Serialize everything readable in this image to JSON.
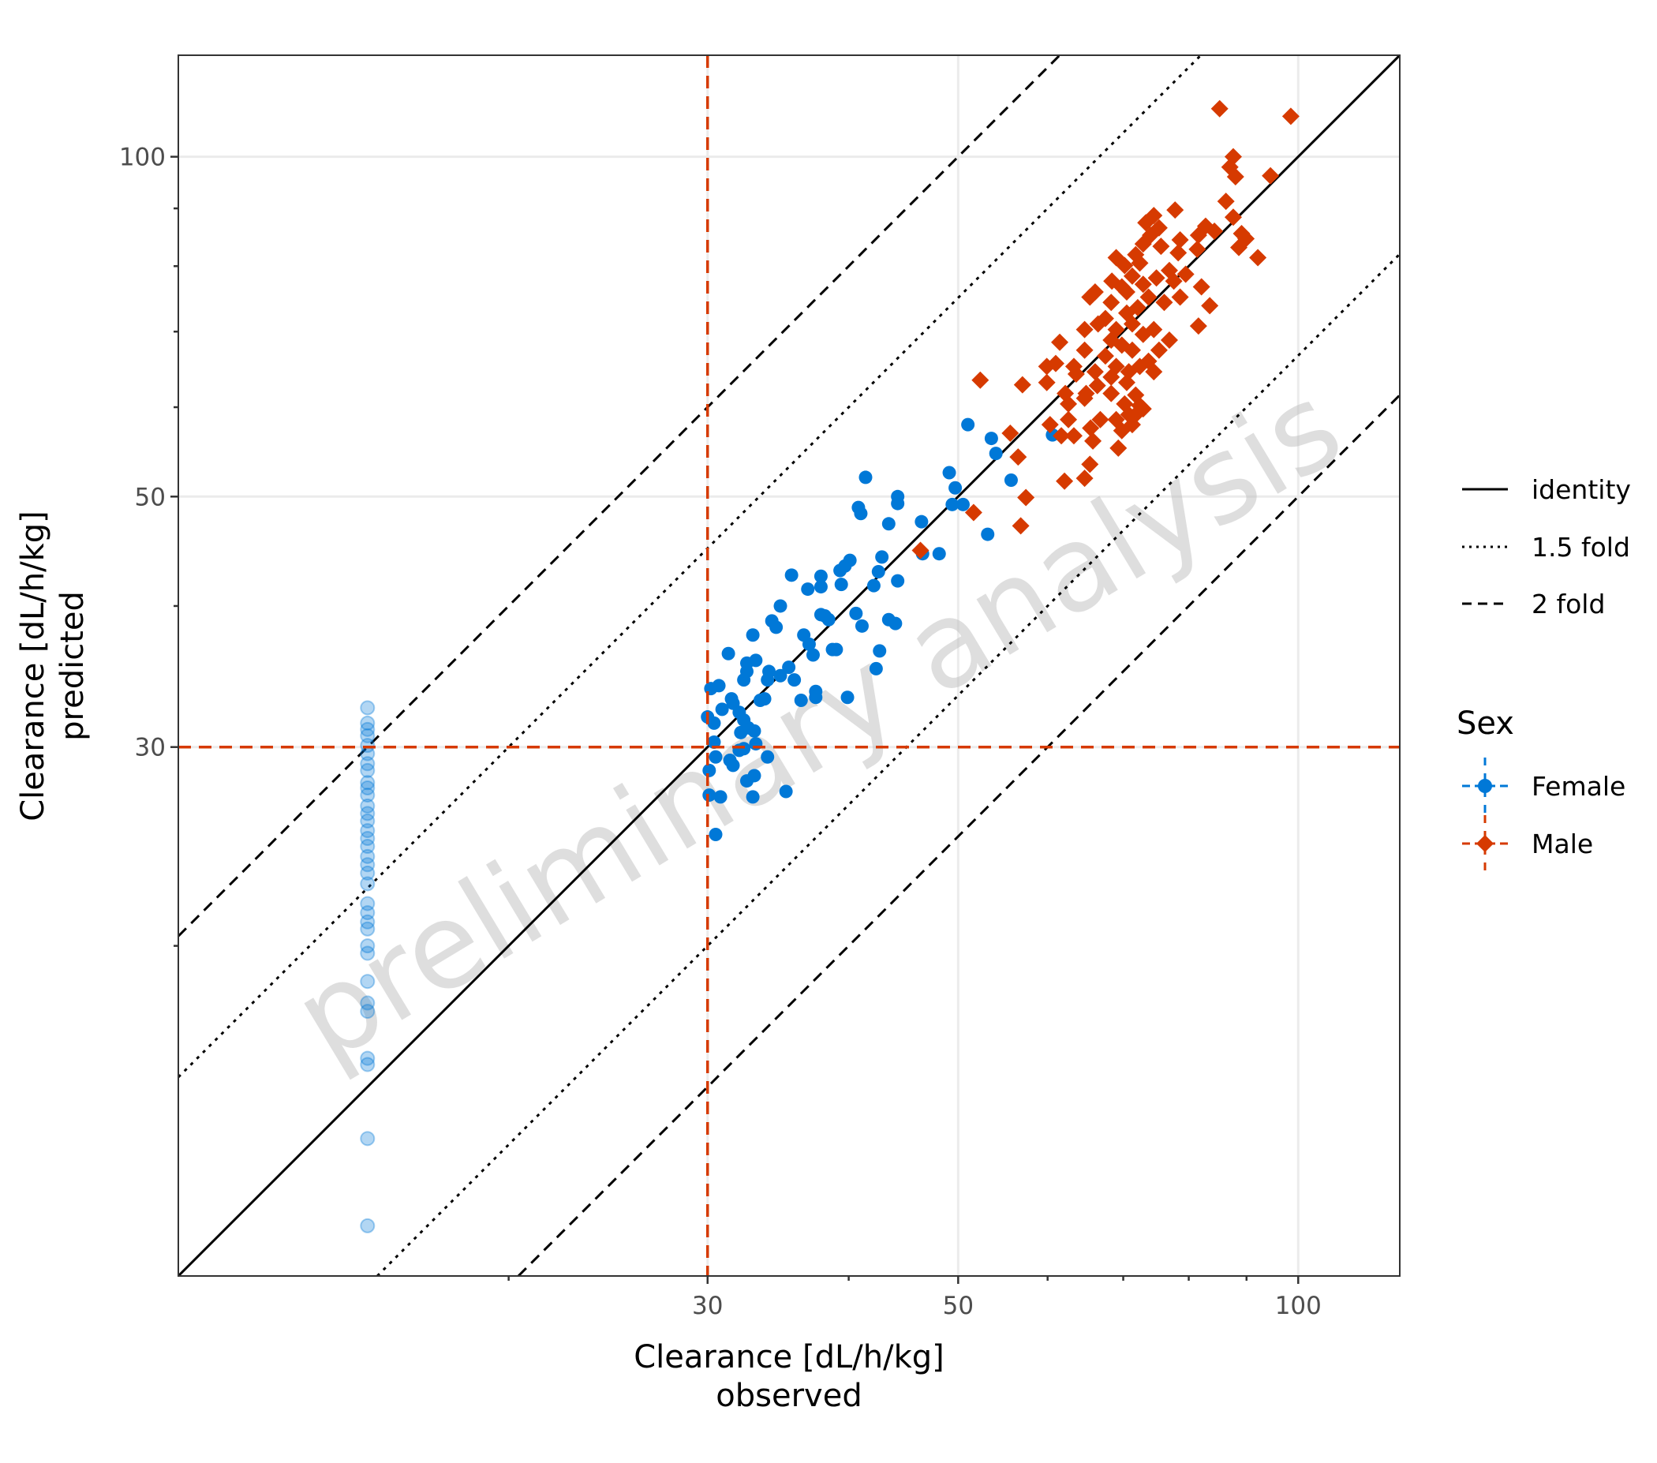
{
  "chart_data": {
    "type": "scatter",
    "x_scale": "log",
    "y_scale": "log",
    "xlim": [
      10.2,
      123
    ],
    "ylim": [
      10.2,
      123
    ],
    "x_ticks": [
      30,
      50,
      100
    ],
    "y_ticks": [
      30,
      50,
      100
    ],
    "x_tick_labels": [
      "30",
      "50",
      "100"
    ],
    "y_tick_labels": [
      "30",
      "50",
      "100"
    ],
    "minor_ticks": [
      20,
      40,
      60,
      70,
      80,
      90
    ],
    "grid": true,
    "xlabel_lines": [
      "Clearance [dL/h/kg]",
      "observed"
    ],
    "ylabel_lines": [
      "Clearance [dL/h/kg]",
      "predicted"
    ],
    "watermark": "preliminary analysis",
    "lloq": 30,
    "lloq_color": "#D63A00",
    "reference_lines": [
      {
        "name": "identity",
        "fold": 1,
        "style": "solid"
      },
      {
        "name": "1.5 fold",
        "fold": 1.5,
        "style": "dotted"
      },
      {
        "name": "2 fold",
        "fold": 2,
        "style": "dashed"
      }
    ],
    "legend": {
      "placement": "right",
      "lines": [
        "identity",
        "1.5 fold",
        "2 fold"
      ],
      "group_title": "Sex",
      "groups": [
        "Female",
        "Male"
      ]
    },
    "series": [
      {
        "name": "Female",
        "color": "#0078D7",
        "marker": "circle",
        "points": [
          [
            30.2,
            33.8
          ],
          [
            30.7,
            34.0
          ],
          [
            31.3,
            36.3
          ],
          [
            30.0,
            31.9
          ],
          [
            30.4,
            31.5
          ],
          [
            30.9,
            32.4
          ],
          [
            31.5,
            33.1
          ],
          [
            31.6,
            32.8
          ],
          [
            32.0,
            32.2
          ],
          [
            32.3,
            34.4
          ],
          [
            32.5,
            35.0
          ],
          [
            32.9,
            37.7
          ],
          [
            33.1,
            35.8
          ],
          [
            32.3,
            31.7
          ],
          [
            32.6,
            31.2
          ],
          [
            33.0,
            31.0
          ],
          [
            32.1,
            30.9
          ],
          [
            30.4,
            30.3
          ],
          [
            30.1,
            28.6
          ],
          [
            30.5,
            29.4
          ],
          [
            31.4,
            29.2
          ],
          [
            32.3,
            29.9
          ],
          [
            33.1,
            30.2
          ],
          [
            33.4,
            33.0
          ],
          [
            33.7,
            33.1
          ],
          [
            33.9,
            34.4
          ],
          [
            34.0,
            35.0
          ],
          [
            34.2,
            38.8
          ],
          [
            34.5,
            38.3
          ],
          [
            34.8,
            40.0
          ],
          [
            34.8,
            34.7
          ],
          [
            35.4,
            35.3
          ],
          [
            35.6,
            42.6
          ],
          [
            35.8,
            34.4
          ],
          [
            36.3,
            33.0
          ],
          [
            36.5,
            37.7
          ],
          [
            36.8,
            41.4
          ],
          [
            36.9,
            37.0
          ],
          [
            37.2,
            36.2
          ],
          [
            37.4,
            33.6
          ],
          [
            37.4,
            33.2
          ],
          [
            37.8,
            42.5
          ],
          [
            37.8,
            41.6
          ],
          [
            37.8,
            39.3
          ],
          [
            38.1,
            39.2
          ],
          [
            38.4,
            38.9
          ],
          [
            38.7,
            36.6
          ],
          [
            39.0,
            36.6
          ],
          [
            39.3,
            43.0
          ],
          [
            39.4,
            41.8
          ],
          [
            39.7,
            43.4
          ],
          [
            39.9,
            33.2
          ],
          [
            40.1,
            43.9
          ],
          [
            40.6,
            39.4
          ],
          [
            40.8,
            48.9
          ],
          [
            41.0,
            48.3
          ],
          [
            41.1,
            38.4
          ],
          [
            41.4,
            52.0
          ],
          [
            42.1,
            41.7
          ],
          [
            42.3,
            35.2
          ],
          [
            42.6,
            36.5
          ],
          [
            42.5,
            42.9
          ],
          [
            42.8,
            44.2
          ],
          [
            43.4,
            47.3
          ],
          [
            43.4,
            38.9
          ],
          [
            44.0,
            38.6
          ],
          [
            44.2,
            50.0
          ],
          [
            44.2,
            42.1
          ],
          [
            44.2,
            49.3
          ],
          [
            46.4,
            47.5
          ],
          [
            46.5,
            44.5
          ],
          [
            48.1,
            44.5
          ],
          [
            49.1,
            52.5
          ],
          [
            49.4,
            49.2
          ],
          [
            49.7,
            50.9
          ],
          [
            50.5,
            49.2
          ],
          [
            51.0,
            57.9
          ],
          [
            53.1,
            46.3
          ],
          [
            53.5,
            56.3
          ],
          [
            54.0,
            54.6
          ],
          [
            55.7,
            51.7
          ],
          [
            60.6,
            56.7
          ],
          [
            30.1,
            27.2
          ],
          [
            30.8,
            27.1
          ],
          [
            30.5,
            25.1
          ],
          [
            32.9,
            27.1
          ],
          [
            35.2,
            27.4
          ],
          [
            33.9,
            29.4
          ],
          [
            33.0,
            28.3
          ],
          [
            32.5,
            28.0
          ],
          [
            32.0,
            29.8
          ],
          [
            31.6,
            28.9
          ],
          [
            32.5,
            35.6
          ]
        ],
        "blq_points": [
          [
            15,
            32.5
          ],
          [
            15,
            31.5
          ],
          [
            15,
            31.1
          ],
          [
            15,
            30.7
          ],
          [
            15,
            30.1
          ],
          [
            15,
            29.6
          ],
          [
            15,
            29.0
          ],
          [
            15,
            28.6
          ],
          [
            15,
            27.9
          ],
          [
            15,
            27.6
          ],
          [
            15,
            27.2
          ],
          [
            15,
            26.6
          ],
          [
            15,
            26.2
          ],
          [
            15,
            25.8
          ],
          [
            15,
            25.3
          ],
          [
            15,
            24.9
          ],
          [
            15,
            24.5
          ],
          [
            15,
            24.0
          ],
          [
            15,
            23.6
          ],
          [
            15,
            23.2
          ],
          [
            15,
            22.7
          ],
          [
            15,
            21.8
          ],
          [
            15,
            21.4
          ],
          [
            15,
            21.0
          ],
          [
            15,
            20.7
          ],
          [
            15,
            20.0
          ],
          [
            15,
            19.7
          ],
          [
            15,
            18.6
          ],
          [
            15,
            17.8
          ],
          [
            15,
            17.5
          ],
          [
            15,
            15.9
          ],
          [
            15,
            15.7
          ],
          [
            15,
            13.5
          ],
          [
            15,
            11.3
          ]
        ]
      },
      {
        "name": "Male",
        "color": "#D63A00",
        "marker": "diamond",
        "points": [
          [
            85.2,
            110.3
          ],
          [
            98.5,
            108.6
          ],
          [
            87.6,
            100.0
          ],
          [
            87.0,
            97.9
          ],
          [
            88.0,
            96.0
          ],
          [
            94.5,
            96.2
          ],
          [
            86.3,
            91.3
          ],
          [
            87.6,
            88.4
          ],
          [
            77.8,
            89.7
          ],
          [
            74.5,
            88.7
          ],
          [
            73.3,
            87.4
          ],
          [
            75.3,
            86.5
          ],
          [
            74.0,
            85.2
          ],
          [
            72.9,
            83.7
          ],
          [
            75.6,
            83.3
          ],
          [
            78.6,
            84.4
          ],
          [
            78.3,
            82.2
          ],
          [
            82.8,
            86.8
          ],
          [
            84.3,
            85.9
          ],
          [
            81.6,
            85.2
          ],
          [
            81.4,
            82.8
          ],
          [
            89.1,
            85.5
          ],
          [
            89.9,
            84.6
          ],
          [
            88.6,
            83.1
          ],
          [
            92.1,
            81.4
          ],
          [
            69.0,
            81.4
          ],
          [
            70.2,
            80.1
          ],
          [
            71.8,
            81.9
          ],
          [
            72.4,
            80.5
          ],
          [
            71.3,
            78.4
          ],
          [
            68.4,
            77.6
          ],
          [
            69.8,
            76.7
          ],
          [
            70.5,
            75.9
          ],
          [
            72.9,
            77.1
          ],
          [
            74.9,
            78.1
          ],
          [
            76.9,
            79.3
          ],
          [
            77.6,
            77.6
          ],
          [
            79.5,
            78.7
          ],
          [
            82.1,
            76.7
          ],
          [
            83.5,
            73.8
          ],
          [
            81.6,
            70.8
          ],
          [
            78.6,
            75.1
          ],
          [
            76.1,
            74.3
          ],
          [
            73.7,
            75.1
          ],
          [
            72.1,
            73.5
          ],
          [
            70.5,
            72.7
          ],
          [
            68.3,
            74.3
          ],
          [
            67.5,
            71.9
          ],
          [
            66.1,
            75.9
          ],
          [
            65.4,
            75.1
          ],
          [
            66.5,
            71.1
          ],
          [
            64.7,
            70.3
          ],
          [
            69.0,
            70.3
          ],
          [
            71.3,
            71.1
          ],
          [
            72.9,
            69.6
          ],
          [
            74.5,
            70.3
          ],
          [
            76.9,
            68.8
          ],
          [
            75.3,
            67.4
          ],
          [
            73.7,
            65.9
          ],
          [
            71.3,
            67.4
          ],
          [
            69.8,
            68.1
          ],
          [
            68.3,
            68.8
          ],
          [
            67.5,
            66.6
          ],
          [
            69.0,
            65.2
          ],
          [
            70.8,
            64.5
          ],
          [
            72.4,
            65.2
          ],
          [
            74.5,
            64.5
          ],
          [
            70.5,
            63.1
          ],
          [
            68.3,
            63.8
          ],
          [
            66.1,
            64.5
          ],
          [
            64.7,
            67.4
          ],
          [
            63.3,
            65.2
          ],
          [
            61.5,
            68.5
          ],
          [
            59.9,
            65.2
          ],
          [
            61.0,
            65.6
          ],
          [
            59.9,
            63.1
          ],
          [
            62.2,
            61.7
          ],
          [
            63.6,
            64.2
          ],
          [
            64.9,
            61.7
          ],
          [
            66.4,
            62.7
          ],
          [
            68.3,
            61.7
          ],
          [
            70.2,
            60.4
          ],
          [
            71.8,
            61.5
          ],
          [
            72.9,
            59.8
          ],
          [
            70.8,
            59.1
          ],
          [
            69.0,
            58.5
          ],
          [
            71.3,
            57.9
          ],
          [
            69.8,
            57.2
          ],
          [
            66.8,
            58.5
          ],
          [
            65.5,
            57.5
          ],
          [
            64.7,
            61.1
          ],
          [
            62.6,
            60.4
          ],
          [
            62.6,
            58.5
          ],
          [
            63.3,
            56.6
          ],
          [
            65.8,
            56.0
          ],
          [
            65.4,
            53.4
          ],
          [
            64.7,
            51.9
          ],
          [
            62.1,
            51.6
          ],
          [
            60.3,
            57.9
          ],
          [
            61.7,
            56.6
          ],
          [
            69.3,
            55.2
          ],
          [
            52.3,
            63.4
          ],
          [
            57.0,
            62.8
          ],
          [
            55.6,
            56.9
          ],
          [
            56.5,
            54.2
          ],
          [
            57.4,
            49.9
          ],
          [
            56.8,
            47.1
          ],
          [
            51.6,
            48.4
          ],
          [
            46.3,
            44.8
          ],
          [
            71.8,
            59.1
          ],
          [
            72.4,
            60.2
          ]
        ]
      }
    ]
  }
}
